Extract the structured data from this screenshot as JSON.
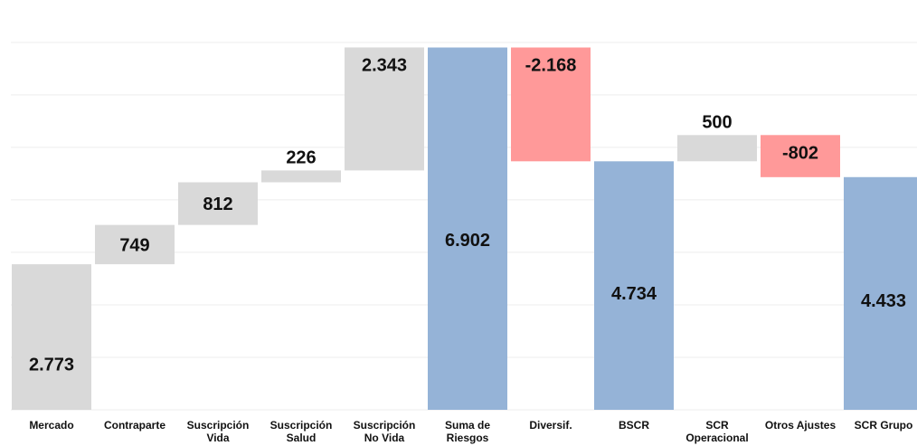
{
  "chart_data": {
    "type": "bar",
    "subtype": "waterfall",
    "title": "",
    "xlabel": "",
    "ylabel": "",
    "ylim": [
      0,
      7600
    ],
    "grid": true,
    "categories": [
      [
        "Mercado"
      ],
      [
        "Contraparte"
      ],
      [
        "Suscripción",
        "Vida"
      ],
      [
        "Suscripción",
        "Salud"
      ],
      [
        "Suscripción",
        "No Vida"
      ],
      [
        "Suma de",
        "Riesgos"
      ],
      [
        "Diversif."
      ],
      [
        "BSCR"
      ],
      [
        "SCR",
        "Operacional"
      ],
      [
        "Otros Ajustes"
      ],
      [
        "SCR Grupo"
      ]
    ],
    "values": [
      2773,
      749,
      812,
      226,
      2343,
      6902,
      -2168,
      4734,
      500,
      -802,
      4433
    ],
    "value_labels": [
      "2.773",
      "749",
      "812",
      "226",
      "2.343",
      "6.902",
      "-2.168",
      "4.734",
      "500",
      "-802",
      "4.433"
    ],
    "bar_kinds": [
      "increment",
      "increment",
      "increment",
      "increment",
      "increment",
      "total",
      "decrement",
      "total",
      "increment",
      "decrement",
      "total"
    ],
    "colors": {
      "increment": "#d9d9d9",
      "decrement": "#ff9999",
      "total": "#95b3d7",
      "grid": "#eeeeee"
    }
  }
}
